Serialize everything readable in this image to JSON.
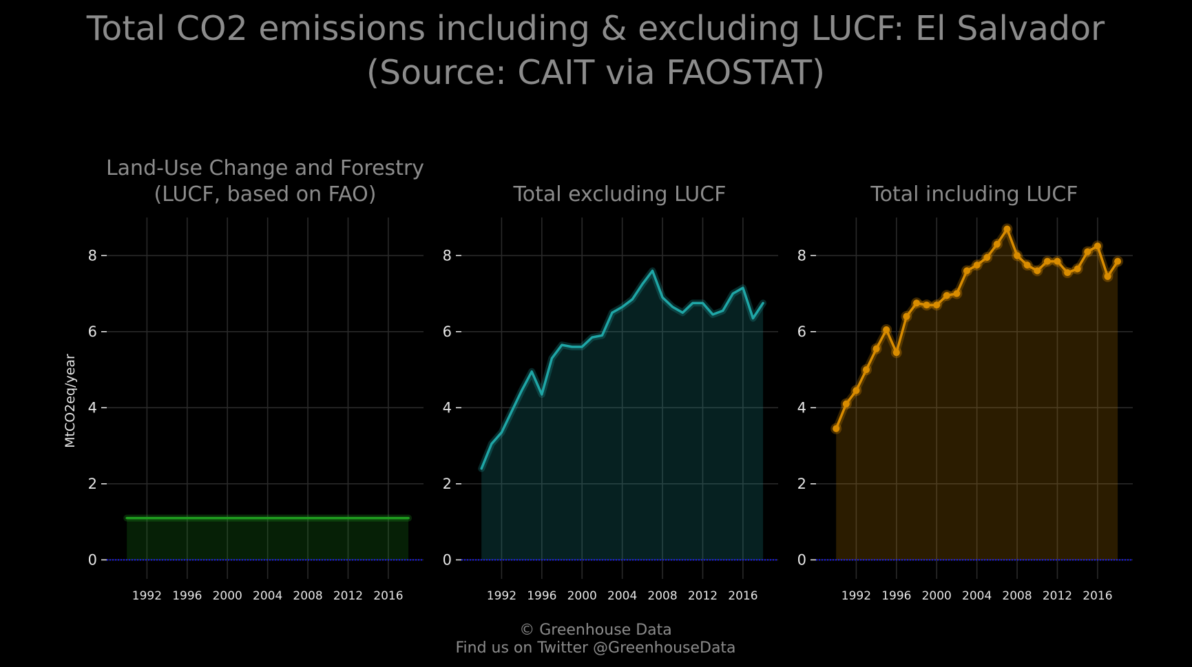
{
  "title": {
    "line1": "Total CO2 emissions including & excluding LUCF: El Salvador",
    "line2": "(Source: CAIT via FAOSTAT)"
  },
  "footer": {
    "line1": "© Greenhouse Data",
    "line2": "Find us on Twitter @GreenhouseData"
  },
  "colors": {
    "background": "#000000",
    "text": "#8c8c8c",
    "tick": "#e6e6e6",
    "grid": "#2a2a2a",
    "zero_line": "#1a1aff",
    "lucf": "#1f9e1f",
    "excluding": "#1fa6a6",
    "including": "#d98c00"
  },
  "chart_data": [
    {
      "type": "area",
      "title_lines": [
        "Land-Use Change and Forestry",
        "(LUCF, based on FAO)"
      ],
      "ylabel": "MtCO2eq/year",
      "xlim": [
        1988,
        2019.5
      ],
      "ylim": [
        -0.5,
        9.0
      ],
      "yticks": [
        0,
        2,
        4,
        6,
        8
      ],
      "xticks": [
        1992,
        1996,
        2000,
        2004,
        2008,
        2012,
        2016
      ],
      "grid": true,
      "markers": false,
      "series": [
        {
          "color": "#1f9e1f",
          "x": [
            1990,
            1991,
            1992,
            1993,
            1994,
            1995,
            1996,
            1997,
            1998,
            1999,
            2000,
            2001,
            2002,
            2003,
            2004,
            2005,
            2006,
            2007,
            2008,
            2009,
            2010,
            2011,
            2012,
            2013,
            2014,
            2015,
            2016,
            2017,
            2018
          ],
          "values": [
            1.1,
            1.1,
            1.1,
            1.1,
            1.1,
            1.1,
            1.1,
            1.1,
            1.1,
            1.1,
            1.1,
            1.1,
            1.1,
            1.1,
            1.1,
            1.1,
            1.1,
            1.1,
            1.1,
            1.1,
            1.1,
            1.1,
            1.1,
            1.1,
            1.1,
            1.1,
            1.1,
            1.1,
            1.1
          ]
        }
      ]
    },
    {
      "type": "area",
      "title_lines": [
        "Total excluding LUCF"
      ],
      "ylabel": "",
      "xlim": [
        1988,
        2019.5
      ],
      "ylim": [
        -0.5,
        9.0
      ],
      "yticks": [
        0,
        2,
        4,
        6,
        8
      ],
      "xticks": [
        1992,
        1996,
        2000,
        2004,
        2008,
        2012,
        2016
      ],
      "grid": true,
      "markers": false,
      "series": [
        {
          "color": "#1fa6a6",
          "x": [
            1990,
            1991,
            1992,
            1993,
            1994,
            1995,
            1996,
            1997,
            1998,
            1999,
            2000,
            2001,
            2002,
            2003,
            2004,
            2005,
            2006,
            2007,
            2008,
            2009,
            2010,
            2011,
            2012,
            2013,
            2014,
            2015,
            2016,
            2017,
            2018
          ],
          "values": [
            2.4,
            3.05,
            3.35,
            3.9,
            4.45,
            4.95,
            4.35,
            5.3,
            5.65,
            5.6,
            5.6,
            5.85,
            5.9,
            6.5,
            6.65,
            6.85,
            7.25,
            7.6,
            6.9,
            6.65,
            6.5,
            6.75,
            6.75,
            6.45,
            6.55,
            7.0,
            7.15,
            6.35,
            6.75
          ]
        }
      ]
    },
    {
      "type": "line",
      "title_lines": [
        "Total including LUCF"
      ],
      "ylabel": "",
      "xlim": [
        1988,
        2019.5
      ],
      "ylim": [
        -0.5,
        9.0
      ],
      "yticks": [
        0,
        2,
        4,
        6,
        8
      ],
      "xticks": [
        1992,
        1996,
        2000,
        2004,
        2008,
        2012,
        2016
      ],
      "grid": true,
      "markers": true,
      "series": [
        {
          "color": "#d98c00",
          "x": [
            1990,
            1991,
            1992,
            1993,
            1994,
            1995,
            1996,
            1997,
            1998,
            1999,
            2000,
            2001,
            2002,
            2003,
            2004,
            2005,
            2006,
            2007,
            2008,
            2009,
            2010,
            2011,
            2012,
            2013,
            2014,
            2015,
            2016,
            2017,
            2018
          ],
          "values": [
            3.45,
            4.1,
            4.45,
            5.0,
            5.55,
            6.05,
            5.45,
            6.4,
            6.75,
            6.7,
            6.7,
            6.95,
            7.0,
            7.6,
            7.75,
            7.95,
            8.3,
            8.7,
            8.0,
            7.75,
            7.6,
            7.85,
            7.85,
            7.55,
            7.65,
            8.1,
            8.25,
            7.45,
            7.85
          ]
        }
      ]
    }
  ]
}
